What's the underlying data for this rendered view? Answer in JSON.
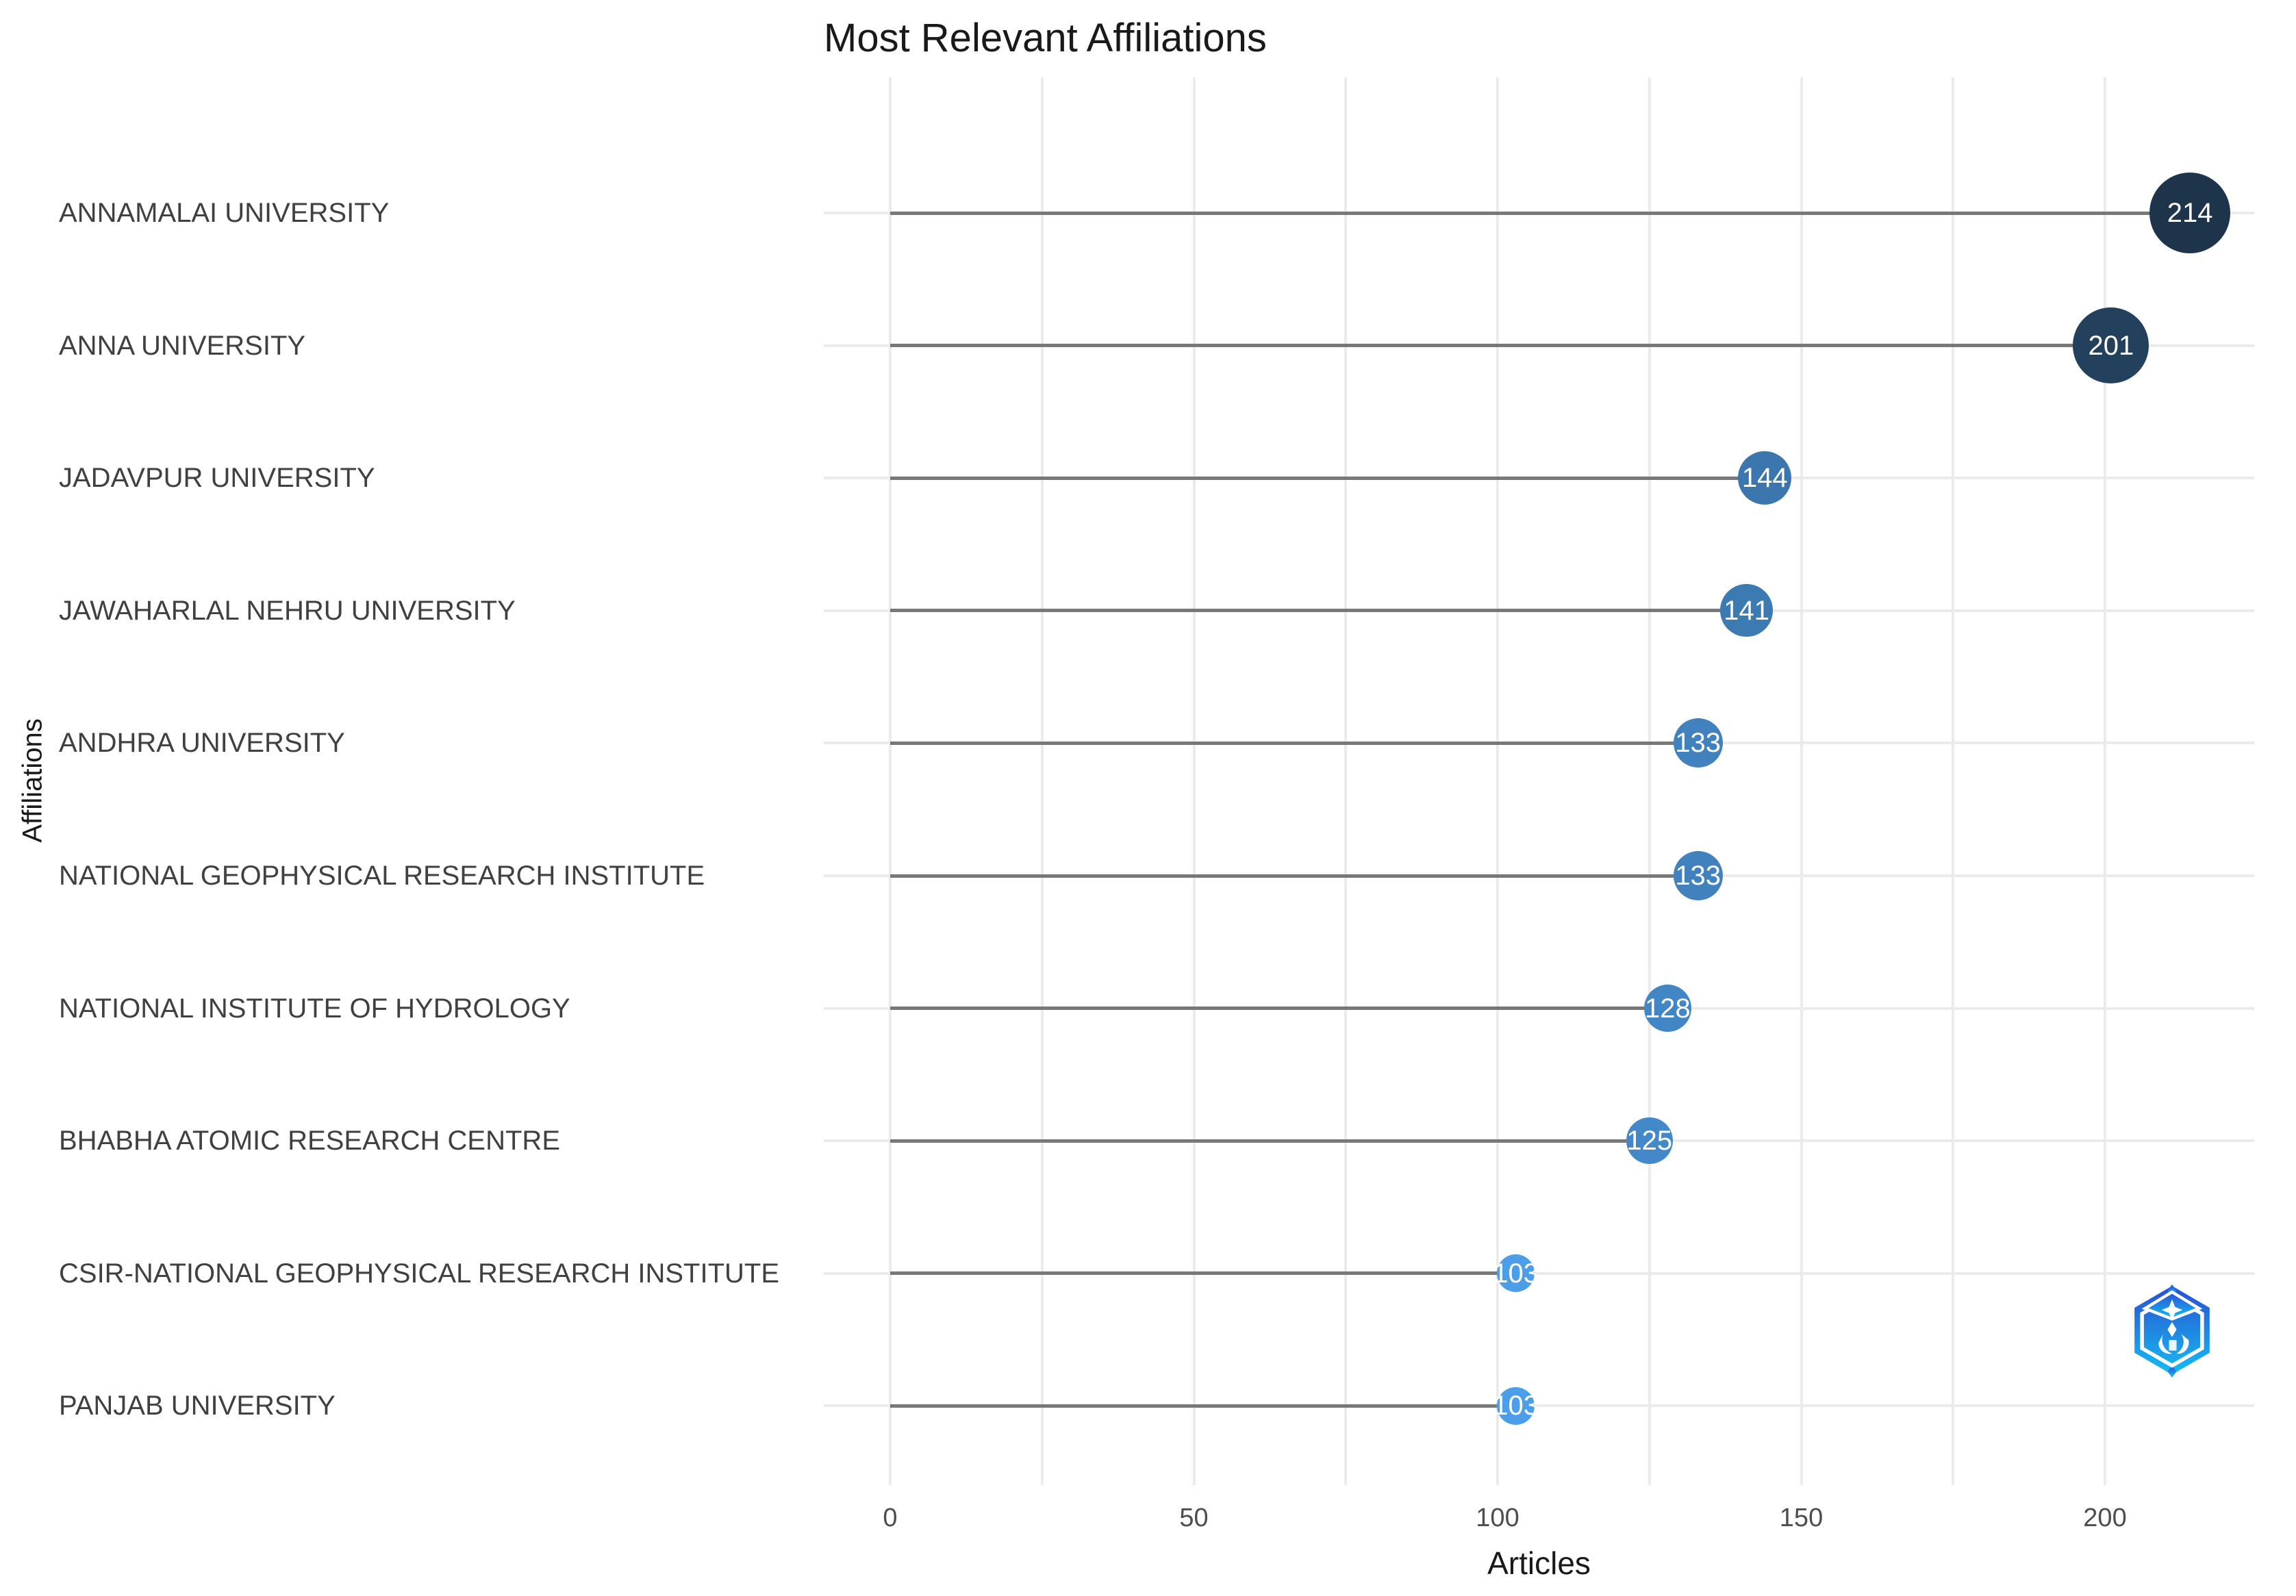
{
  "page": {
    "background": "#ffffff"
  },
  "chart_data": {
    "type": "lollipop",
    "title": "Most Relevant Affiliations",
    "xlabel": "Articles",
    "ylabel": "Affiliations",
    "categories": [
      "ANNAMALAI UNIVERSITY",
      "ANNA UNIVERSITY",
      "JADAVPUR UNIVERSITY",
      "JAWAHARLAL NEHRU UNIVERSITY",
      "ANDHRA UNIVERSITY",
      "NATIONAL GEOPHYSICAL RESEARCH INSTITUTE",
      "NATIONAL INSTITUTE OF HYDROLOGY",
      "BHABHA ATOMIC RESEARCH CENTRE",
      "CSIR-NATIONAL GEOPHYSICAL RESEARCH INSTITUTE",
      "PANJAB UNIVERSITY"
    ],
    "values": [
      214,
      201,
      144,
      141,
      133,
      133,
      128,
      125,
      103,
      103
    ],
    "x_ticks": [
      0,
      50,
      100,
      150,
      200
    ],
    "xlim": [
      -11,
      225
    ],
    "grid_interval": 25,
    "grid": "on",
    "legend_position": "none",
    "style": {
      "bubble_color_low": "#4C9EE8",
      "bubble_color_high": "#1E344B",
      "bubble_value_min": 103,
      "bubble_value_max": 214,
      "bubble_label_color": "#ffffff",
      "stem_color": "#787878",
      "gridline_color": "#ebebeb",
      "title_color": "#191919",
      "axis_title_color": "#191919",
      "tick_label_color": "#4d4d4d",
      "category_label_color": "#404040"
    }
  },
  "watermark": {
    "name": "k-synth-hexagon-logo",
    "gradient_top": "#2B4ED2",
    "gradient_bottom": "#15BDF2",
    "detail_color": "#ffffff"
  }
}
